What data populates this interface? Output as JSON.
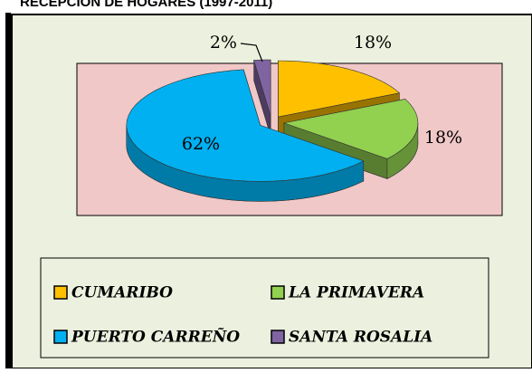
{
  "chart_data": {
    "type": "pie",
    "title": "RECEPCION DE HOGARES (1997-2011)",
    "categories": [
      "CUMARIBO",
      "LA PRIMAVERA",
      "PUERTO CARREÑO",
      "SANTA ROSALIA"
    ],
    "values": [
      18,
      18,
      62,
      2
    ],
    "value_labels": [
      "18%",
      "18%",
      "62%",
      "2%"
    ],
    "colors": [
      "#ffc000",
      "#92d050",
      "#00b0f0",
      "#8064a2"
    ],
    "legend": "bottom"
  }
}
